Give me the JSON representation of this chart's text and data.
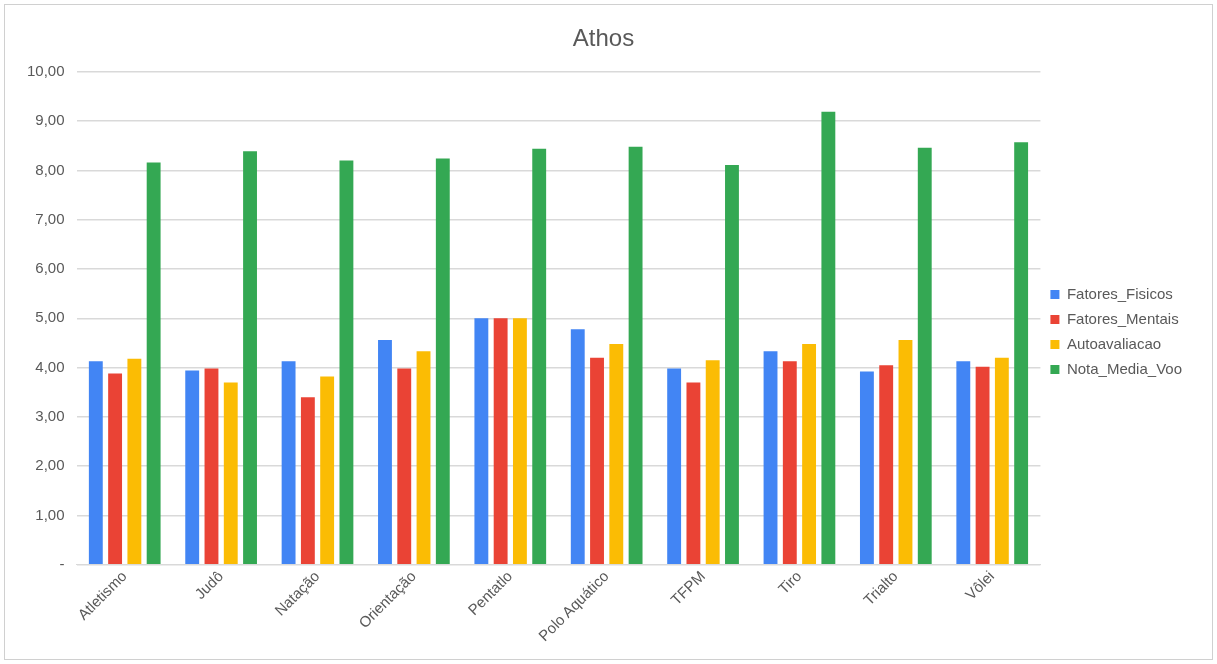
{
  "chart_data": {
    "type": "bar",
    "title": "Athos",
    "categories": [
      "Atletismo",
      "Judô",
      "Natação",
      "Orientação",
      "Pentatlo",
      "Polo Aquático",
      "TFPM",
      "Tiro",
      "Trialto",
      "Vôlei"
    ],
    "series": [
      {
        "name": "Fatores_Fisicos",
        "color": "#4285f4",
        "values": [
          4.13,
          3.94,
          4.13,
          4.56,
          5.0,
          4.78,
          3.98,
          4.33,
          3.92,
          4.13
        ]
      },
      {
        "name": "Fatores_Mentais",
        "color": "#ea4335",
        "values": [
          3.88,
          3.98,
          3.4,
          3.98,
          5.0,
          4.2,
          3.7,
          4.13,
          4.05,
          4.02
        ]
      },
      {
        "name": "Autoavaliacao",
        "color": "#fbbc04",
        "values": [
          4.18,
          3.7,
          3.82,
          4.33,
          5.0,
          4.48,
          4.15,
          4.48,
          4.56,
          4.2
        ]
      },
      {
        "name": "Nota_Media_Voo",
        "color": "#34a853",
        "values": [
          8.16,
          8.39,
          8.2,
          8.24,
          8.44,
          8.48,
          8.11,
          9.19,
          8.46,
          8.57
        ]
      }
    ],
    "ylim": [
      0,
      10
    ],
    "yticks": [
      {
        "value": 0,
        "label": "-"
      },
      {
        "value": 1,
        "label": "1,00"
      },
      {
        "value": 2,
        "label": "2,00"
      },
      {
        "value": 3,
        "label": "3,00"
      },
      {
        "value": 4,
        "label": "4,00"
      },
      {
        "value": 5,
        "label": "5,00"
      },
      {
        "value": 6,
        "label": "6,00"
      },
      {
        "value": 7,
        "label": "7,00"
      },
      {
        "value": 8,
        "label": "8,00"
      },
      {
        "value": 9,
        "label": "9,00"
      },
      {
        "value": 10,
        "label": "10,00"
      }
    ],
    "grid": "y",
    "legend": "right"
  }
}
